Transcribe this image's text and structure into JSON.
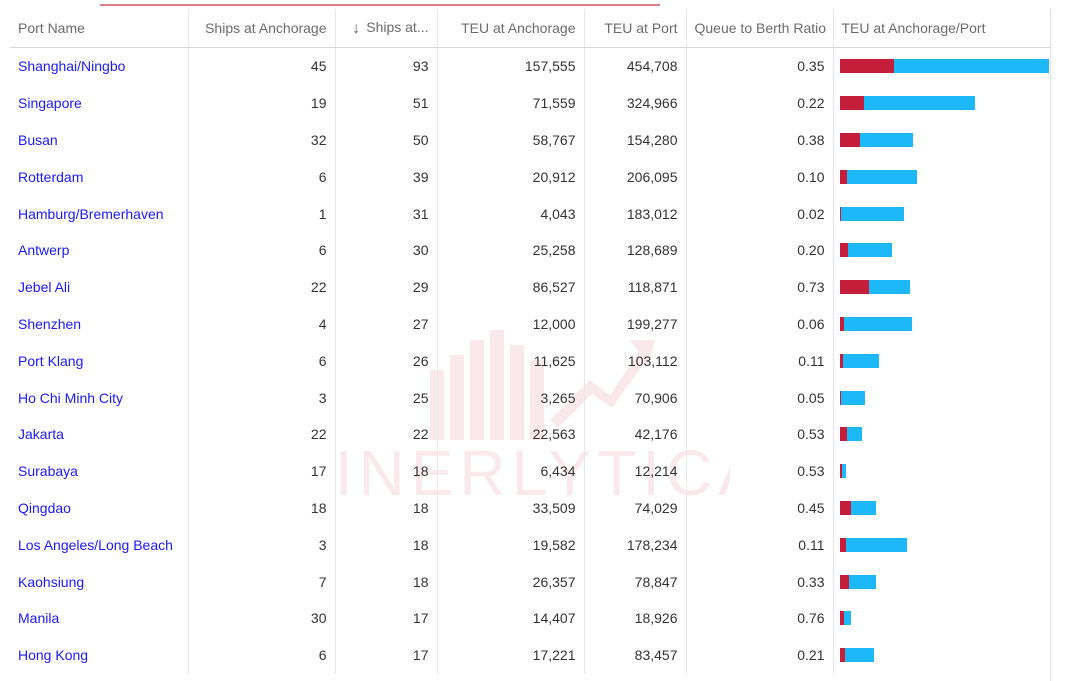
{
  "table": {
    "columns": [
      "Port Name",
      "Ships at Anchorage",
      "Ships at...",
      "TEU at Anchorage",
      "TEU at Port",
      "Queue to Berth Ratio",
      "TEU at Anchorage/Port"
    ],
    "sorted_column": 2,
    "sort_direction": "descending",
    "bar_colors": {
      "anchorage": "#c41e3a",
      "port": "#1cb8f7"
    },
    "rows": [
      {
        "port": "Shanghai/Ningbo",
        "ships_anchorage": "45",
        "ships_port": "93",
        "teu_anchorage": "157,555",
        "teu_port": "454,708",
        "ratio": "0.35",
        "teu_anc_value": 157555,
        "teu_port_value": 454708
      },
      {
        "port": "Singapore",
        "ships_anchorage": "19",
        "ships_port": "51",
        "teu_anchorage": "71,559",
        "teu_port": "324,966",
        "ratio": "0.22",
        "teu_anc_value": 71559,
        "teu_port_value": 324966
      },
      {
        "port": "Busan",
        "ships_anchorage": "32",
        "ships_port": "50",
        "teu_anchorage": "58,767",
        "teu_port": "154,280",
        "ratio": "0.38",
        "teu_anc_value": 58767,
        "teu_port_value": 154280
      },
      {
        "port": "Rotterdam",
        "ships_anchorage": "6",
        "ships_port": "39",
        "teu_anchorage": "20,912",
        "teu_port": "206,095",
        "ratio": "0.10",
        "teu_anc_value": 20912,
        "teu_port_value": 206095
      },
      {
        "port": "Hamburg/Bremerhaven",
        "ships_anchorage": "1",
        "ships_port": "31",
        "teu_anchorage": "4,043",
        "teu_port": "183,012",
        "ratio": "0.02",
        "teu_anc_value": 4043,
        "teu_port_value": 183012
      },
      {
        "port": "Antwerp",
        "ships_anchorage": "6",
        "ships_port": "30",
        "teu_anchorage": "25,258",
        "teu_port": "128,689",
        "ratio": "0.20",
        "teu_anc_value": 25258,
        "teu_port_value": 128689
      },
      {
        "port": "Jebel Ali",
        "ships_anchorage": "22",
        "ships_port": "29",
        "teu_anchorage": "86,527",
        "teu_port": "118,871",
        "ratio": "0.73",
        "teu_anc_value": 86527,
        "teu_port_value": 118871
      },
      {
        "port": "Shenzhen",
        "ships_anchorage": "4",
        "ships_port": "27",
        "teu_anchorage": "12,000",
        "teu_port": "199,277",
        "ratio": "0.06",
        "teu_anc_value": 12000,
        "teu_port_value": 199277
      },
      {
        "port": "Port Klang",
        "ships_anchorage": "6",
        "ships_port": "26",
        "teu_anchorage": "11,625",
        "teu_port": "103,112",
        "ratio": "0.11",
        "teu_anc_value": 11625,
        "teu_port_value": 103112
      },
      {
        "port": "Ho Chi Minh City",
        "ships_anchorage": "3",
        "ships_port": "25",
        "teu_anchorage": "3,265",
        "teu_port": "70,906",
        "ratio": "0.05",
        "teu_anc_value": 3265,
        "teu_port_value": 70906
      },
      {
        "port": "Jakarta",
        "ships_anchorage": "22",
        "ships_port": "22",
        "teu_anchorage": "22,563",
        "teu_port": "42,176",
        "ratio": "0.53",
        "teu_anc_value": 22563,
        "teu_port_value": 42176
      },
      {
        "port": "Surabaya",
        "ships_anchorage": "17",
        "ships_port": "18",
        "teu_anchorage": "6,434",
        "teu_port": "12,214",
        "ratio": "0.53",
        "teu_anc_value": 6434,
        "teu_port_value": 12214
      },
      {
        "port": "Qingdao",
        "ships_anchorage": "18",
        "ships_port": "18",
        "teu_anchorage": "33,509",
        "teu_port": "74,029",
        "ratio": "0.45",
        "teu_anc_value": 33509,
        "teu_port_value": 74029
      },
      {
        "port": "Los Angeles/Long Beach",
        "ships_anchorage": "3",
        "ships_port": "18",
        "teu_anchorage": "19,582",
        "teu_port": "178,234",
        "ratio": "0.11",
        "teu_anc_value": 19582,
        "teu_port_value": 178234
      },
      {
        "port": "Kaohsiung",
        "ships_anchorage": "7",
        "ships_port": "18",
        "teu_anchorage": "26,357",
        "teu_port": "78,847",
        "ratio": "0.33",
        "teu_anc_value": 26357,
        "teu_port_value": 78847
      },
      {
        "port": "Manila",
        "ships_anchorage": "30",
        "ships_port": "17",
        "teu_anchorage": "14,407",
        "teu_port": "18,926",
        "ratio": "0.76",
        "teu_anc_value": 14407,
        "teu_port_value": 18926
      },
      {
        "port": "Hong Kong",
        "ships_anchorage": "6",
        "ships_port": "17",
        "teu_anchorage": "17,221",
        "teu_port": "83,457",
        "ratio": "0.21",
        "teu_anc_value": 17221,
        "teu_port_value": 83457
      }
    ]
  },
  "watermark": {
    "brand": "LINERLYTICA"
  }
}
